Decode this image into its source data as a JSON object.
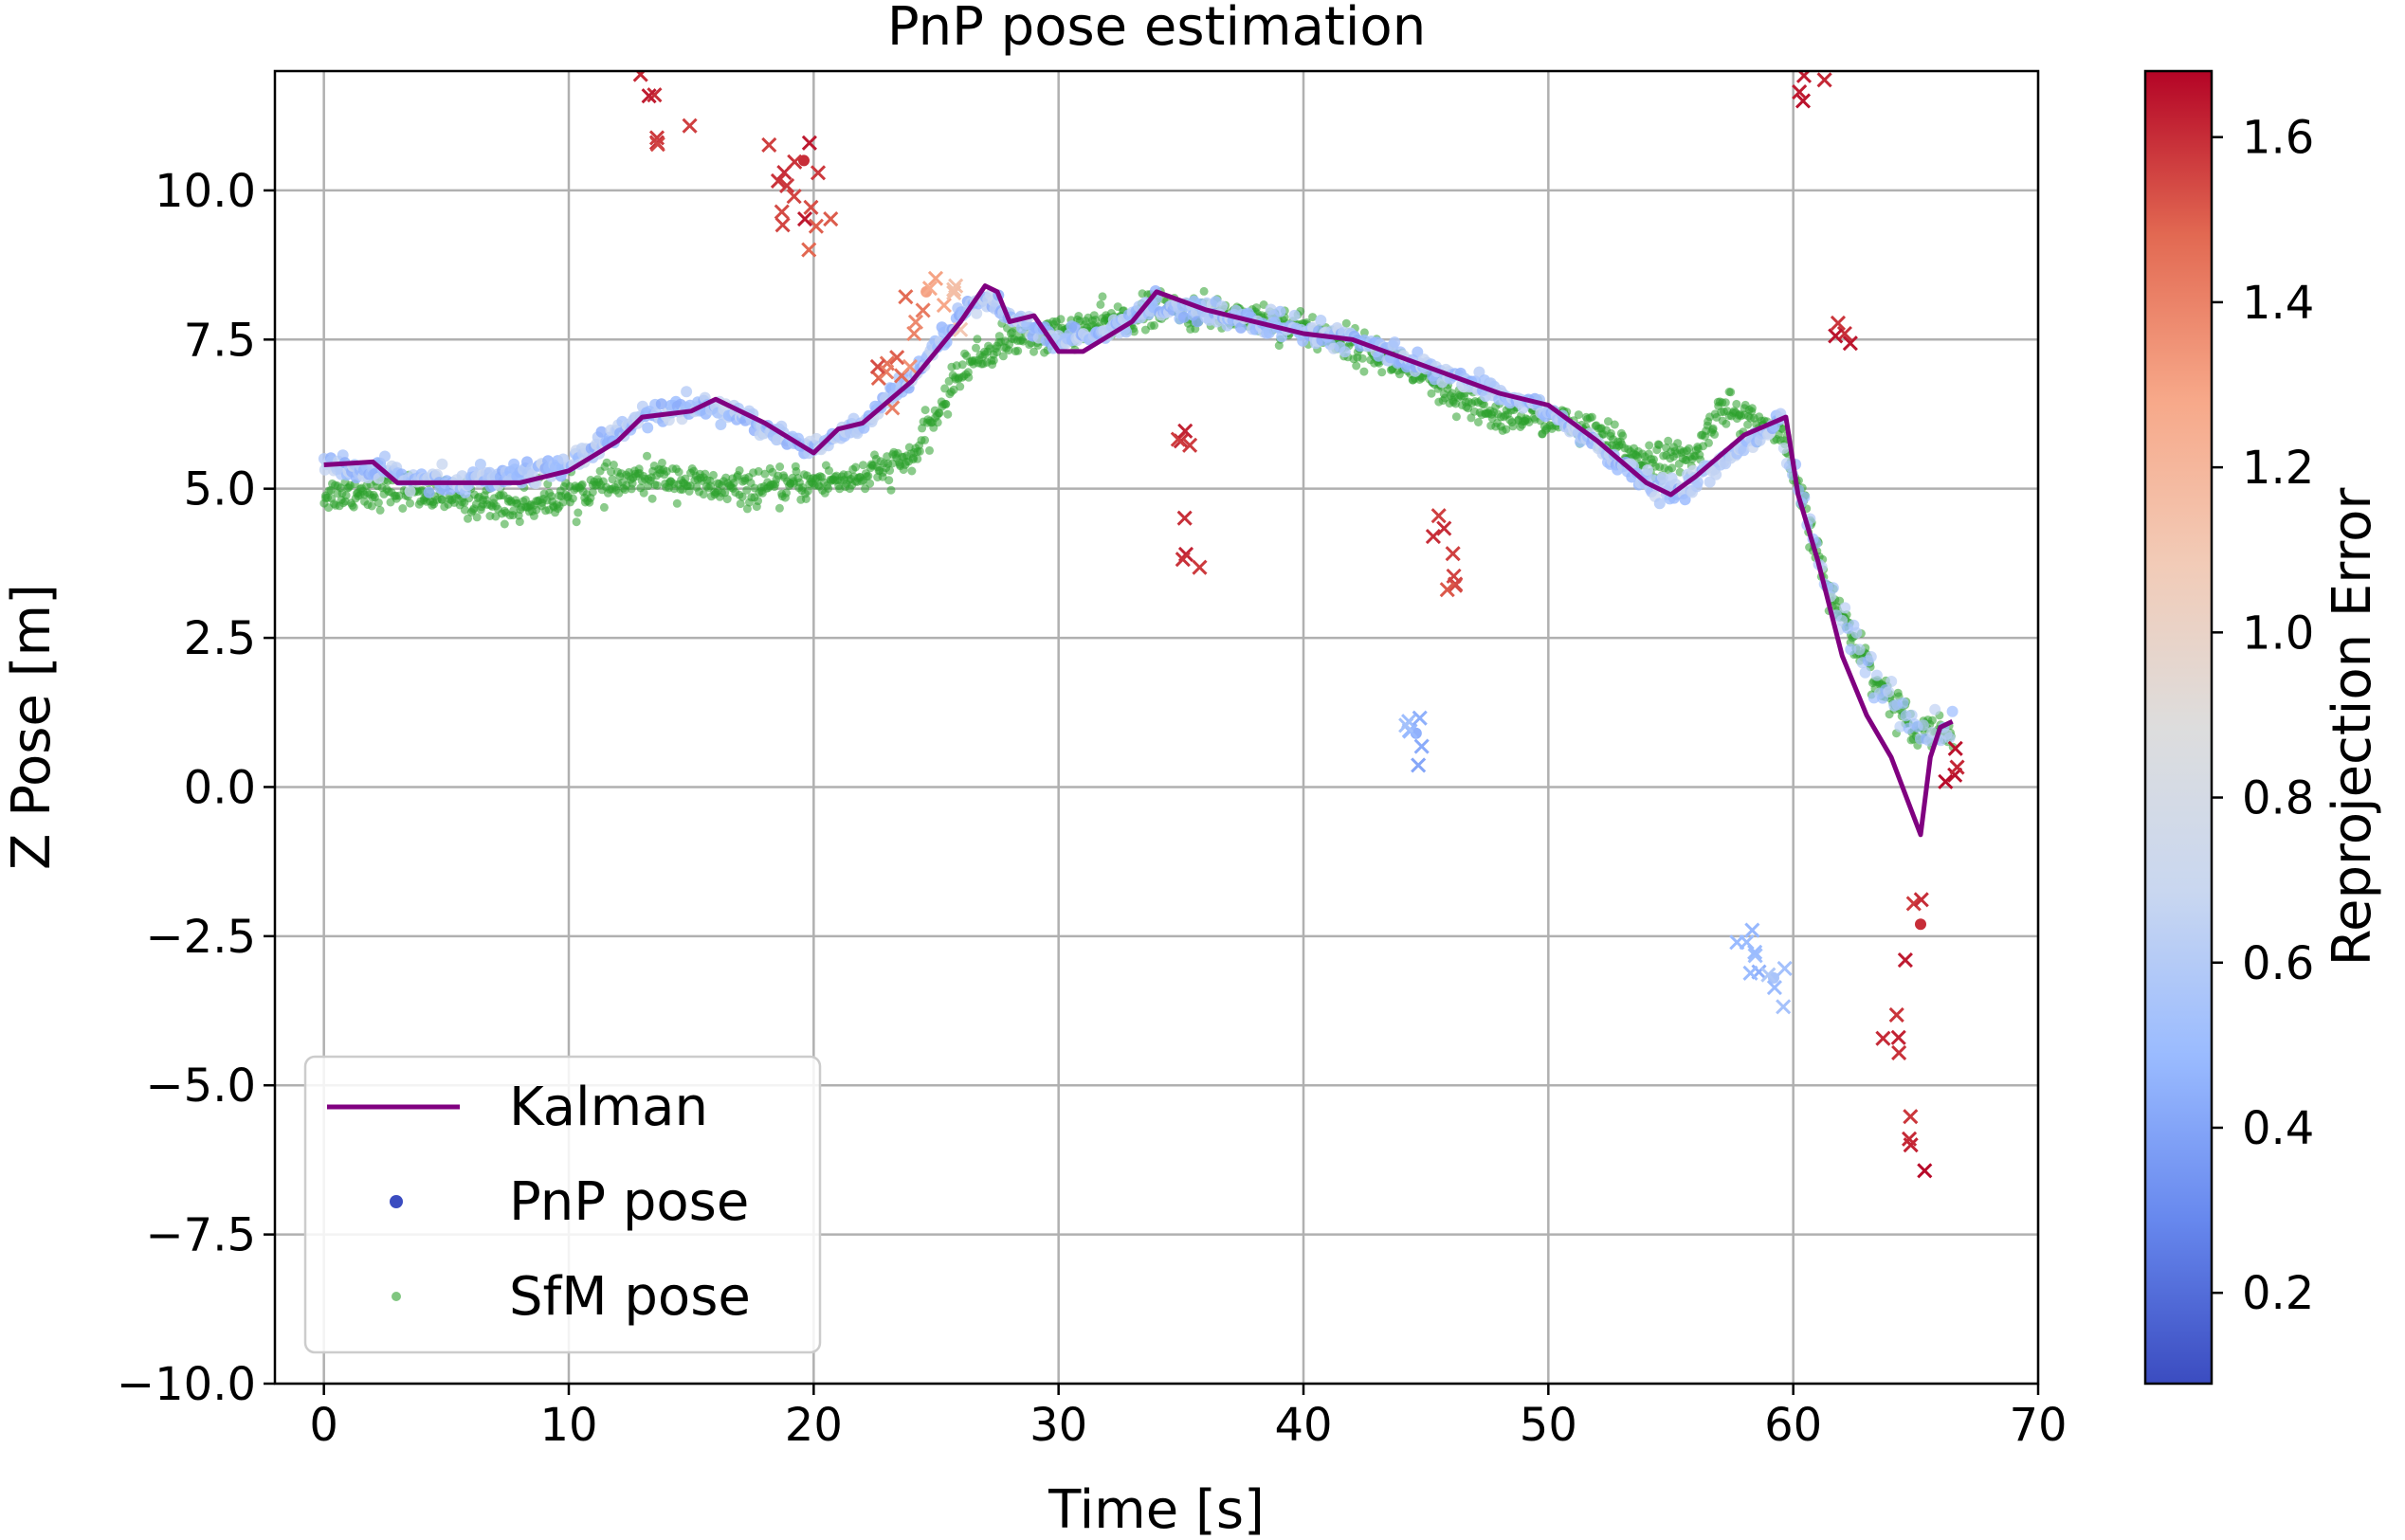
{
  "chart_data": {
    "type": "scatter",
    "title": "PnP pose estimation",
    "xlabel": "Time [s]",
    "ylabel": "Z Pose [m]",
    "xlim": [
      -2,
      70
    ],
    "ylim": [
      -10,
      12
    ],
    "x_ticks": [
      0,
      10,
      20,
      30,
      40,
      50,
      60,
      70
    ],
    "x_tick_labels": [
      "0",
      "10",
      "20",
      "30",
      "40",
      "50",
      "60",
      "70"
    ],
    "y_ticks": [
      -10,
      -7.5,
      -5,
      -2.5,
      0,
      2.5,
      5,
      7.5,
      10
    ],
    "y_tick_labels": [
      "−10.0",
      "−7.5",
      "−5.0",
      "−2.5",
      "0.0",
      "2.5",
      "5.0",
      "7.5",
      "10.0"
    ],
    "grid": true,
    "legend_position": "lower-left",
    "colorbar": {
      "label": "Reprojection Error",
      "range": [
        0.09,
        1.68
      ],
      "ticks": [
        0.2,
        0.4,
        0.6,
        0.8,
        1.0,
        1.2,
        1.4,
        1.6
      ],
      "tick_labels": [
        "0.2",
        "0.4",
        "0.6",
        "0.8",
        "1.0",
        "1.2",
        "1.4",
        "1.6"
      ],
      "colormap": "coolwarm",
      "colormap_stops": [
        "#3b4cc0",
        "#6788ee",
        "#9abbff",
        "#c9d7f0",
        "#dddddd",
        "#f2cbb7",
        "#f7a889",
        "#e26952",
        "#b40426"
      ]
    },
    "series": [
      {
        "name": "Kalman",
        "kind": "line",
        "color": "#800080",
        "x": [
          0,
          2,
          3,
          5,
          8,
          10,
          12,
          13,
          15,
          16,
          18,
          20,
          21,
          22,
          24,
          26,
          27,
          27.5,
          28,
          29,
          30,
          31,
          33,
          34,
          36,
          38,
          40,
          42,
          44,
          46,
          48,
          50,
          52,
          54,
          55,
          56,
          58,
          59.7,
          60.2,
          61,
          62,
          63,
          64,
          65.2,
          65.6,
          66,
          66.5
        ],
        "y": [
          5.4,
          5.45,
          5.1,
          5.1,
          5.1,
          5.3,
          5.8,
          6.2,
          6.3,
          6.5,
          6.1,
          5.6,
          6.0,
          6.1,
          6.8,
          7.8,
          8.4,
          8.3,
          7.8,
          7.9,
          7.3,
          7.3,
          7.8,
          8.3,
          8.0,
          7.8,
          7.6,
          7.5,
          7.2,
          6.9,
          6.6,
          6.4,
          5.8,
          5.1,
          4.9,
          5.2,
          5.9,
          6.2,
          4.9,
          3.8,
          2.2,
          1.2,
          0.5,
          -0.8,
          0.5,
          1.0,
          1.1
        ]
      },
      {
        "name": "PnP pose",
        "kind": "scatter",
        "legend_color": "#3b4cc0",
        "trend_x": [
          0,
          5,
          10,
          13,
          16,
          18,
          20,
          22,
          24,
          26,
          27,
          28,
          30,
          32,
          34,
          38,
          42,
          46,
          50,
          54,
          55,
          58,
          59.5
        ],
        "trend_y": [
          5.4,
          5.1,
          5.4,
          6.2,
          6.4,
          6.0,
          5.7,
          6.1,
          6.8,
          7.9,
          8.2,
          7.9,
          7.5,
          7.6,
          8.1,
          7.8,
          7.5,
          6.9,
          6.3,
          5.1,
          4.9,
          5.7,
          6.2
        ],
        "outliers_x": [
          13.5,
          13.6,
          18.8,
          19.2,
          19.6,
          20.1,
          23,
          23.4,
          24.1,
          24.6,
          25.8,
          35,
          35.2,
          44.3,
          44.6,
          45.3,
          46.2,
          58.1,
          58.6,
          59.2,
          60.4,
          62.1,
          64.3,
          64.8,
          65.2,
          66.6
        ],
        "outliers_y": [
          11.6,
          10.8,
          10.3,
          9.9,
          10.5,
          9.4,
          7.1,
          7.2,
          7.6,
          8.3,
          8.4,
          5.8,
          3.9,
          1.1,
          0.9,
          4.2,
          3.4,
          -2.6,
          -3.1,
          -3.2,
          11.5,
          7.6,
          -4.2,
          -6.0,
          -2.3,
          0.2
        ],
        "outliers_err": [
          1.6,
          1.6,
          1.6,
          1.55,
          1.6,
          1.5,
          1.45,
          1.5,
          1.4,
          1.3,
          1.15,
          1.6,
          1.62,
          0.5,
          0.45,
          1.6,
          1.55,
          0.5,
          0.45,
          0.55,
          1.65,
          1.6,
          1.62,
          1.62,
          1.6,
          1.65
        ]
      },
      {
        "name": "SfM pose",
        "kind": "scatter",
        "color": "#2ca02c",
        "trend_x": [
          0,
          3,
          6,
          8,
          10,
          12,
          14,
          16,
          18,
          20,
          22,
          24,
          25,
          26,
          28,
          30,
          34,
          38,
          40,
          42,
          44,
          46,
          48,
          50,
          52,
          54,
          56,
          57,
          58,
          59.5,
          60.5,
          61.5,
          62.5,
          63.5,
          65,
          66.5
        ],
        "trend_y": [
          4.9,
          5.0,
          4.8,
          4.7,
          4.9,
          5.1,
          5.2,
          5.0,
          5.0,
          5.1,
          5.2,
          5.5,
          6.2,
          7.0,
          7.5,
          7.6,
          8.0,
          7.9,
          7.7,
          7.4,
          7.1,
          6.5,
          6.2,
          6.2,
          5.9,
          5.5,
          5.5,
          6.4,
          6.2,
          5.9,
          4.6,
          3.2,
          2.5,
          1.7,
          1.0,
          0.9
        ]
      }
    ]
  }
}
